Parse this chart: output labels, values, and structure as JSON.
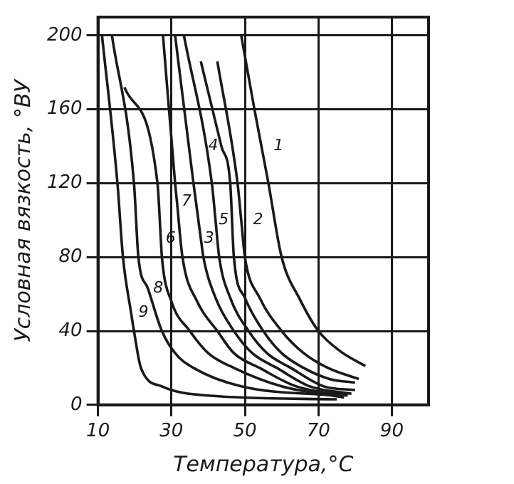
{
  "chart_data": {
    "type": "line",
    "xlabel": "Температура,°C",
    "ylabel": "Условная вязкость, °ВУ",
    "xlim": [
      10,
      100
    ],
    "ylim": [
      0,
      210
    ],
    "xticks": [
      10,
      30,
      50,
      70,
      90
    ],
    "yticks": [
      0,
      40,
      80,
      120,
      160,
      200
    ],
    "grid": true,
    "legend": false,
    "marker": "none",
    "line_style": "solid",
    "series": [
      {
        "color": "#1a1a1a",
        "x": [
          49,
          52.6,
          54.5,
          56.4,
          60,
          65,
          70,
          76,
          82.8
        ],
        "values": [
          200,
          160,
          140,
          120,
          80,
          57,
          40,
          29,
          21
        ]
      },
      {
        "color": "#1a1a1a",
        "x": [
          42.5,
          48,
          49,
          50,
          54,
          60,
          66,
          72.6,
          81
        ],
        "values": [
          186,
          120,
          100,
          80,
          58,
          40,
          28,
          20,
          14
        ]
      },
      {
        "color": "#1a1a1a",
        "x": [
          31,
          36,
          38,
          38.7,
          42,
          47,
          52,
          58.7,
          67.7,
          79
        ],
        "values": [
          200,
          120,
          90,
          80,
          58,
          40,
          28,
          20,
          10,
          6
        ]
      },
      {
        "color": "#1a1a1a",
        "x": [
          38,
          43.6,
          46,
          47,
          50,
          55,
          60,
          66,
          73,
          80
        ],
        "values": [
          186,
          140,
          120,
          80,
          58,
          40,
          28,
          20,
          14,
          12
        ]
      },
      {
        "color": "#1a1a1a",
        "x": [
          33.4,
          41,
          42,
          43,
          46,
          51,
          56,
          62.5,
          71.5,
          80
        ],
        "values": [
          200,
          120,
          100,
          80,
          58,
          40,
          28,
          20,
          10,
          8
        ]
      },
      {
        "color": "#1a1a1a",
        "x": [
          17.2,
          26.2,
          27.1,
          27.4,
          30,
          35,
          40,
          47,
          60,
          77
        ],
        "values": [
          172,
          120,
          90,
          80,
          56,
          40,
          28,
          20,
          10,
          4
        ]
      },
      {
        "color": "#1a1a1a",
        "x": [
          27.7,
          31,
          31.5,
          33,
          37,
          42.5,
          47,
          54,
          64,
          78
        ],
        "values": [
          200,
          120,
          110,
          80,
          56,
          40,
          28,
          20,
          10,
          5
        ]
      },
      {
        "color": "#1a1a1a",
        "x": [
          13.8,
          19.8,
          21,
          23.6,
          27.4,
          31,
          36,
          49,
          75
        ],
        "values": [
          200,
          120,
          80,
          63,
          40,
          28,
          20,
          10,
          5
        ]
      },
      {
        "color": "#1a1a1a",
        "x": [
          11.1,
          15.3,
          16.8,
          19,
          19.8,
          21.7,
          27.4,
          40,
          75
        ],
        "values": [
          200,
          120,
          80,
          50,
          40,
          20,
          10,
          5,
          3
        ]
      }
    ],
    "annotations": [
      {
        "text": "1",
        "x": 54.5,
        "y": 140
      },
      {
        "text": "2",
        "x": 49,
        "y": 100
      },
      {
        "text": "3",
        "x": 38,
        "y": 90
      },
      {
        "text": "4",
        "x": 43.6,
        "y": 140
      },
      {
        "text": "5",
        "x": 42,
        "y": 100
      },
      {
        "text": "6",
        "x": 27.1,
        "y": 90
      },
      {
        "text": "7",
        "x": 31.5,
        "y": 110
      },
      {
        "text": "8",
        "x": 23.6,
        "y": 63
      },
      {
        "text": "9",
        "x": 19,
        "y": 50
      }
    ]
  }
}
